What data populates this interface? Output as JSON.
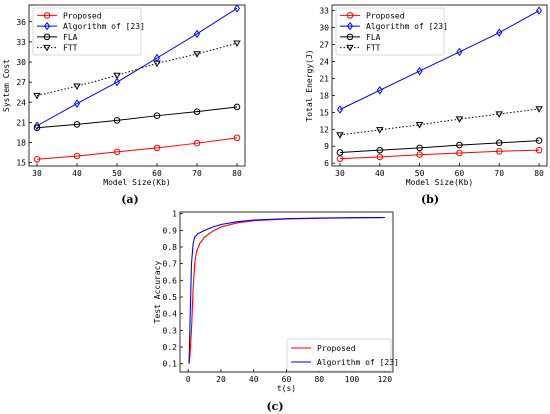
{
  "chart_data": [
    {
      "id": "a",
      "type": "line",
      "panel_label": "(a)",
      "title": "",
      "xlabel": "Model Size(Kb)",
      "ylabel": "System Cost",
      "x": [
        30,
        40,
        50,
        60,
        70,
        80
      ],
      "xticks": [
        30,
        40,
        50,
        60,
        70,
        80
      ],
      "yticks": [
        15,
        18,
        21,
        24,
        27,
        30,
        33,
        36
      ],
      "xlim": [
        28,
        82
      ],
      "ylim": [
        14.5,
        38.5
      ],
      "grid": false,
      "legend_position": "top-left",
      "series": [
        {
          "name": "Proposed",
          "color": "#ff0000",
          "marker": "circle",
          "dash": "solid",
          "values": [
            15.5,
            16.0,
            16.6,
            17.2,
            17.9,
            18.7
          ]
        },
        {
          "name": "Algorithm of [23]",
          "color": "#0000ff",
          "marker": "diamond",
          "dash": "solid",
          "values": [
            20.5,
            23.8,
            27.0,
            30.6,
            34.2,
            38.0
          ]
        },
        {
          "name": "FLA",
          "color": "#000000",
          "marker": "circle",
          "dash": "solid",
          "values": [
            20.2,
            20.7,
            21.3,
            22.0,
            22.6,
            23.3
          ]
        },
        {
          "name": "FTT",
          "color": "#000000",
          "marker": "triangle-down",
          "dash": "dotted",
          "values": [
            25.0,
            26.4,
            28.0,
            29.8,
            31.2,
            32.8
          ]
        }
      ]
    },
    {
      "id": "b",
      "type": "line",
      "panel_label": "(b)",
      "title": "",
      "xlabel": "Model Size(Kb)",
      "ylabel": "Total Energy(J)",
      "x": [
        30,
        40,
        50,
        60,
        70,
        80
      ],
      "xticks": [
        30,
        40,
        50,
        60,
        70,
        80
      ],
      "yticks": [
        6,
        9,
        12,
        15,
        18,
        21,
        24,
        27,
        30,
        33
      ],
      "xlim": [
        28,
        82
      ],
      "ylim": [
        5.5,
        34.0
      ],
      "grid": false,
      "legend_position": "top-left",
      "series": [
        {
          "name": "Proposed",
          "color": "#ff0000",
          "marker": "circle",
          "dash": "solid",
          "values": [
            6.8,
            7.1,
            7.5,
            7.8,
            8.1,
            8.3
          ]
        },
        {
          "name": "Algorithm of [23]",
          "color": "#0000ff",
          "marker": "diamond",
          "dash": "solid",
          "values": [
            15.5,
            18.9,
            22.3,
            25.7,
            29.1,
            33.0
          ]
        },
        {
          "name": "FLA",
          "color": "#000000",
          "marker": "circle",
          "dash": "solid",
          "values": [
            7.9,
            8.3,
            8.7,
            9.2,
            9.6,
            10.0
          ]
        },
        {
          "name": "FTT",
          "color": "#000000",
          "marker": "triangle-down",
          "dash": "dotted",
          "values": [
            11.0,
            11.9,
            12.8,
            13.8,
            14.7,
            15.6
          ]
        }
      ]
    },
    {
      "id": "c",
      "type": "line",
      "panel_label": "(c)",
      "title": "",
      "xlabel": "t(s)",
      "ylabel": "Test Accuracy",
      "xticks": [
        0,
        20,
        40,
        60,
        80,
        100,
        120
      ],
      "yticks": [
        0.1,
        0.2,
        0.3,
        0.4,
        0.5,
        0.6,
        0.7,
        0.8,
        0.9,
        1.0
      ],
      "xlim": [
        -5,
        125
      ],
      "ylim": [
        0.05,
        1.01
      ],
      "grid": false,
      "legend_position": "bottom-right",
      "series": [
        {
          "name": "Proposed",
          "color": "#ff0000",
          "dash": "solid",
          "points": [
            [
              0.5,
              0.1
            ],
            [
              1,
              0.14
            ],
            [
              2,
              0.3
            ],
            [
              3,
              0.55
            ],
            [
              4,
              0.7
            ],
            [
              5,
              0.77
            ],
            [
              7,
              0.82
            ],
            [
              10,
              0.86
            ],
            [
              15,
              0.895
            ],
            [
              20,
              0.92
            ],
            [
              30,
              0.945
            ],
            [
              40,
              0.958
            ],
            [
              60,
              0.968
            ],
            [
              80,
              0.972
            ],
            [
              100,
              0.975
            ],
            [
              120,
              0.977
            ]
          ]
        },
        {
          "name": "Algorithm of [23]",
          "color": "#0000ff",
          "dash": "solid",
          "points": [
            [
              0.5,
              0.1
            ],
            [
              1,
              0.3
            ],
            [
              2,
              0.7
            ],
            [
              3,
              0.82
            ],
            [
              4,
              0.86
            ],
            [
              6,
              0.88
            ],
            [
              10,
              0.9
            ],
            [
              15,
              0.92
            ],
            [
              20,
              0.935
            ],
            [
              30,
              0.952
            ],
            [
              40,
              0.962
            ],
            [
              60,
              0.97
            ],
            [
              80,
              0.974
            ],
            [
              100,
              0.976
            ],
            [
              120,
              0.977
            ]
          ]
        }
      ]
    }
  ]
}
